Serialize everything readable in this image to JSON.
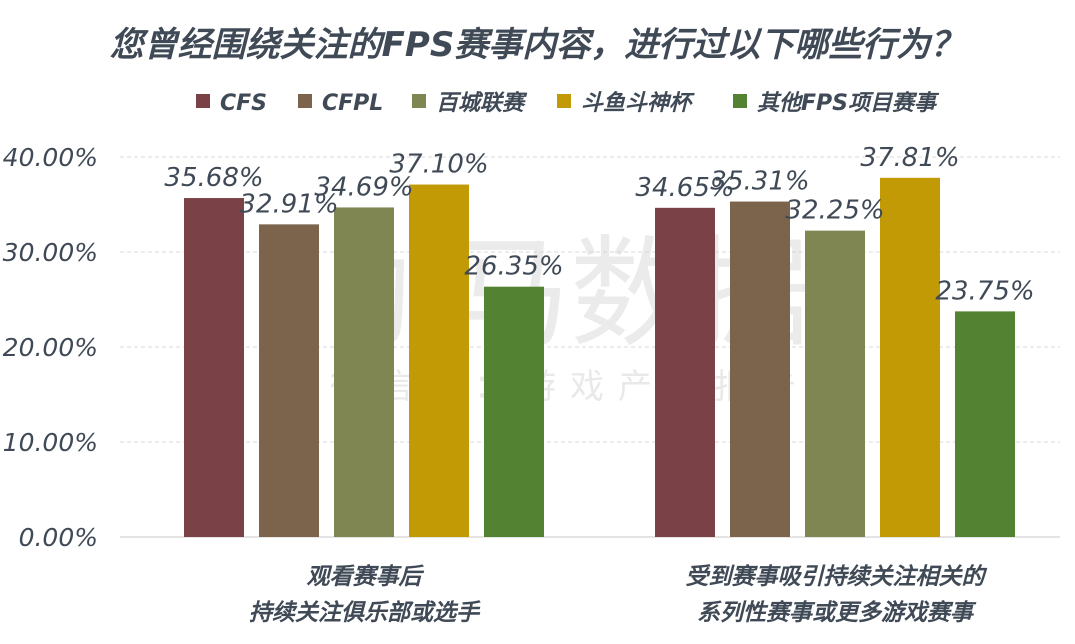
{
  "colors": {
    "CFS": "#7a4246",
    "CFPL": "#7c634b",
    "百城联赛": "#7f8652",
    "斗鱼斗神杯": "#c29a06",
    "其他FPS项目赛事": "#538233"
  },
  "chart_data": {
    "type": "bar",
    "title": "您曾经围绕关注的FPS赛事内容，进行过以下哪些行为？",
    "categories": [
      [
        "观看赛事后",
        "持续关注俱乐部或选手"
      ],
      [
        "受到赛事吸引持续关注相关的",
        "系列性赛事或更多游戏赛事"
      ]
    ],
    "series": [
      {
        "name": "CFS",
        "values": [
          35.68,
          34.65
        ],
        "labels": [
          "35.68%",
          "34.65%"
        ]
      },
      {
        "name": "CFPL",
        "values": [
          32.91,
          35.31
        ],
        "labels": [
          "32.91%",
          "35.31%"
        ]
      },
      {
        "name": "百城联赛",
        "values": [
          34.69,
          32.25
        ],
        "labels": [
          "34.69%",
          "32.25%"
        ]
      },
      {
        "name": "斗鱼斗神杯",
        "values": [
          37.1,
          37.81
        ],
        "labels": [
          "37.10%",
          "37.81%"
        ]
      },
      {
        "name": "其他FPS项目赛事",
        "values": [
          26.35,
          23.75
        ],
        "labels": [
          "26.35%",
          "23.75%"
        ]
      }
    ],
    "yticks": [
      "0.00%",
      "10.00%",
      "20.00%",
      "30.00%",
      "40.00%"
    ],
    "ylim": [
      0,
      40
    ],
    "legend_position": "top",
    "grid": true
  },
  "watermark": {
    "main": "伽马数据",
    "sub": "微信号：游戏产业报告"
  }
}
